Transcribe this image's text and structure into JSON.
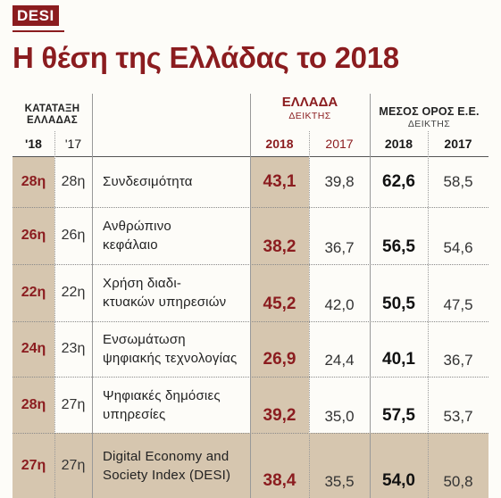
{
  "tag": "DESI",
  "title": "Η θέση της Ελλάδας το 2018",
  "headers": {
    "ranking": "ΚΑΤΑΤΑΞΗ\nΕΛΛΑΔΑΣ",
    "rank_2018": "'18",
    "rank_2017": "'17",
    "greece": "ΕΛΛΑΔΑ",
    "greece_sub": "ΔΕΙΚΤΗΣ",
    "eu": "ΜΕΣΟΣ ΟΡΟΣ Ε.Ε.",
    "eu_sub": "ΔΕΙΚΤΗΣ",
    "y2018": "2018",
    "y2017": "2017"
  },
  "rows": [
    {
      "rank18": "28η",
      "rank17": "28η",
      "label": "Συνδεσιμότητα",
      "gr18": "43,1",
      "gr17": "39,8",
      "eu18": "62,6",
      "eu17": "58,5"
    },
    {
      "rank18": "26η",
      "rank17": "26η",
      "label": "Ανθρώπινο\nκεφάλαιο",
      "gr18": "38,2",
      "gr17": "36,7",
      "eu18": "56,5",
      "eu17": "54,6"
    },
    {
      "rank18": "22η",
      "rank17": "22η",
      "label": "Χρήση διαδι-\nκτυακών υπηρεσιών",
      "gr18": "45,2",
      "gr17": "42,0",
      "eu18": "50,5",
      "eu17": "47,5"
    },
    {
      "rank18": "24η",
      "rank17": "23η",
      "label": "Ενσωμάτωση\nψηφιακής τεχνολογίας",
      "gr18": "26,9",
      "gr17": "24,4",
      "eu18": "40,1",
      "eu17": "36,7"
    },
    {
      "rank18": "28η",
      "rank17": "27η",
      "label": "Ψηφιακές δημόσιες\nυπηρεσίες",
      "gr18": "39,2",
      "gr17": "35,0",
      "eu18": "57,5",
      "eu17": "53,7"
    },
    {
      "rank18": "27η",
      "rank17": "27η",
      "label": "Digital Economy and\nSociety Index (DESI)",
      "gr18": "38,4",
      "gr17": "35,5",
      "eu18": "54,0",
      "eu17": "50,8"
    }
  ]
}
